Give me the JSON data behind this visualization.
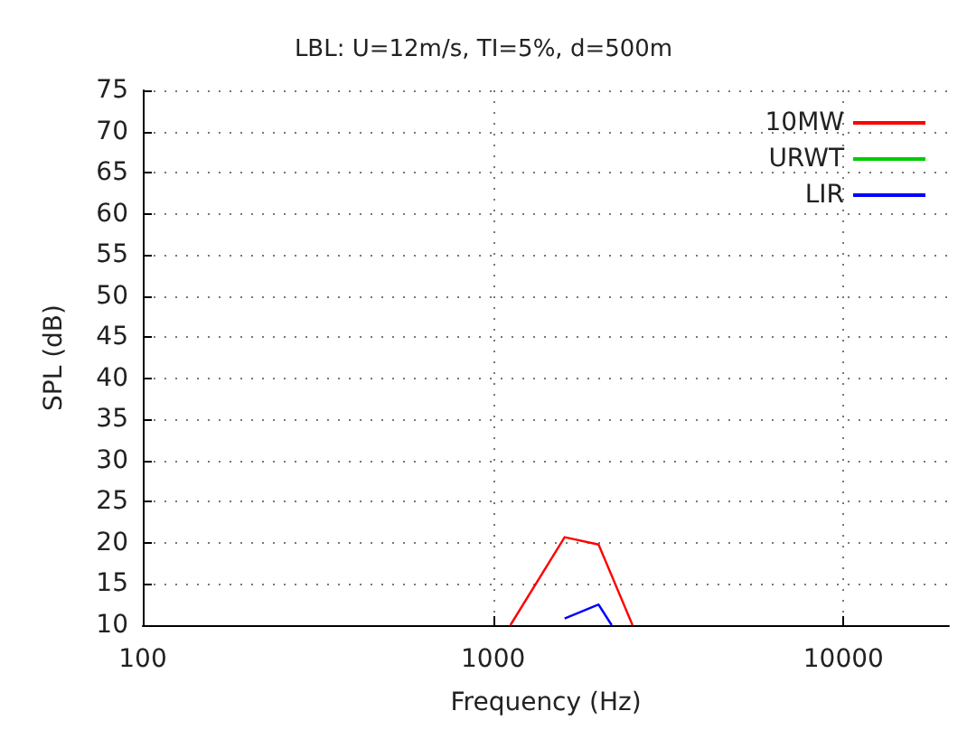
{
  "chart_data": {
    "type": "line",
    "title": "LBL: U=12m/s, TI=5%, d=500m",
    "xlabel": "Frequency (Hz)",
    "ylabel": "SPL (dB)",
    "log": "x",
    "xlim": [
      100,
      20000
    ],
    "xticks": [
      100,
      1000,
      10000
    ],
    "ylim": [
      10,
      75
    ],
    "yticks": [
      10,
      15,
      20,
      25,
      30,
      35,
      40,
      45,
      50,
      55,
      60,
      65,
      70,
      75
    ],
    "grid": true,
    "legend": "top right",
    "marker": "none",
    "line_style": "solid",
    "series": [
      {
        "name": "10MW",
        "color": "#ff0000",
        "x": [
          1120,
          1600,
          2000,
          2500
        ],
        "values": [
          10,
          20.7,
          19.8,
          10
        ]
      },
      {
        "name": "URWT",
        "color": "#00cc00"
      },
      {
        "name": "LIR",
        "color": "#0000ff",
        "x": [
          1600,
          2000,
          2180
        ],
        "values": [
          10.8,
          12.5,
          10
        ]
      }
    ]
  }
}
